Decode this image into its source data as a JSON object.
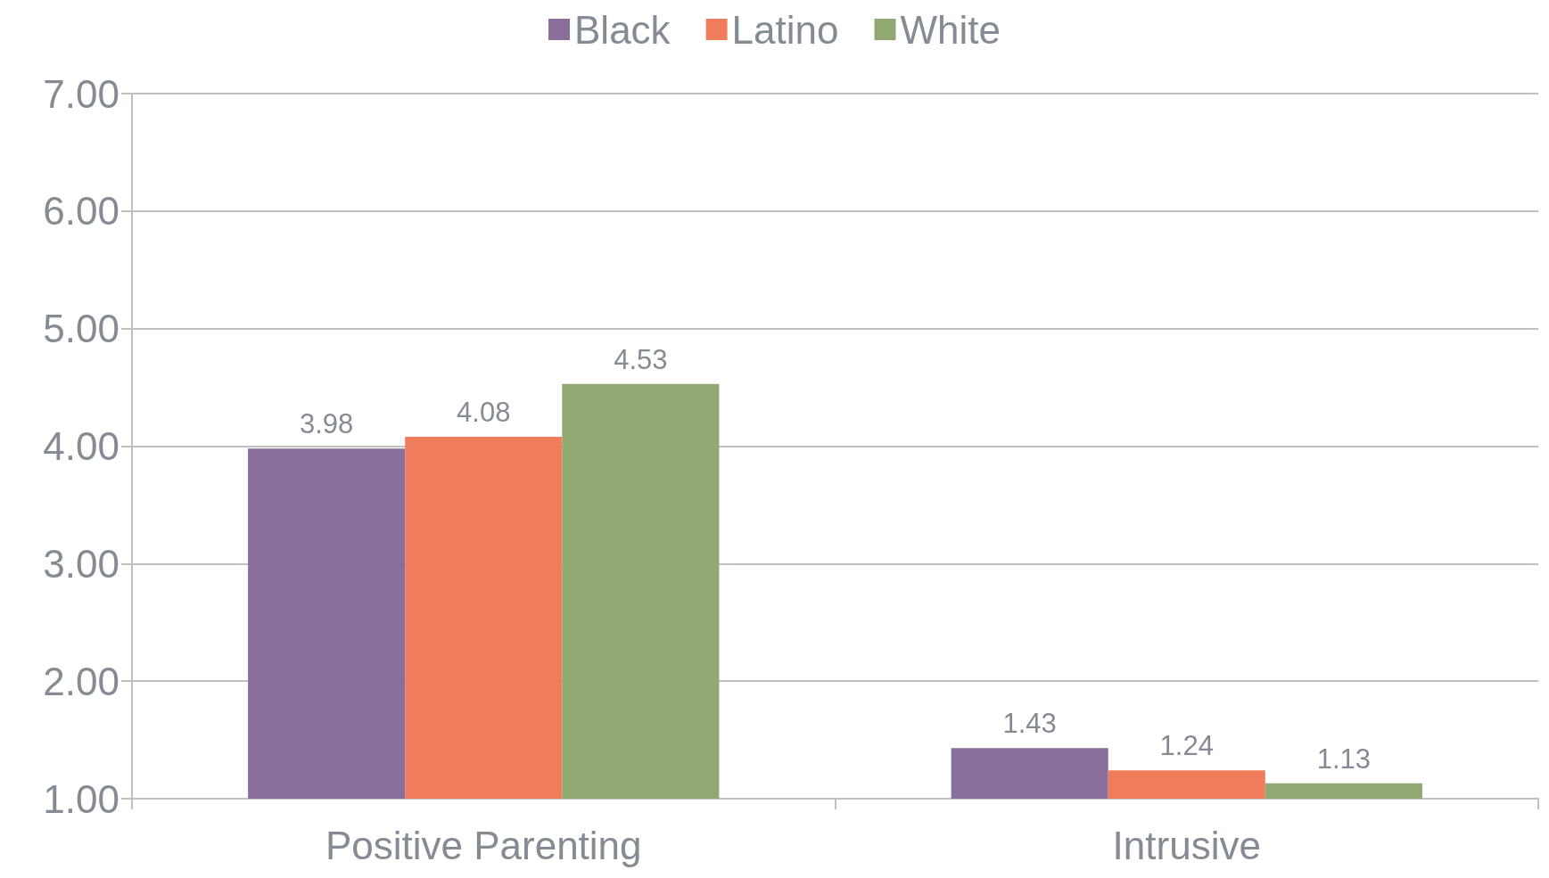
{
  "chart_data": {
    "type": "bar",
    "categories": [
      "Positive Parenting",
      "Intrusive"
    ],
    "series": [
      {
        "name": "Black",
        "color": "#8a6e9c",
        "values": [
          3.98,
          1.43
        ]
      },
      {
        "name": "Latino",
        "color": "#ef7d5c",
        "values": [
          4.08,
          1.24
        ]
      },
      {
        "name": "White",
        "color": "#91a872",
        "values": [
          4.53,
          1.13
        ]
      }
    ],
    "ylim": [
      1,
      7
    ],
    "yticks": [
      {
        "value": 1,
        "label": "1.00"
      },
      {
        "value": 2,
        "label": "2.00"
      },
      {
        "value": 3,
        "label": "3.00"
      },
      {
        "value": 4,
        "label": "4.00"
      },
      {
        "value": 5,
        "label": "5.00"
      },
      {
        "value": 6,
        "label": "6.00"
      },
      {
        "value": 7,
        "label": "7.00"
      }
    ],
    "data_labels": true,
    "grid": "y",
    "legend": "top"
  }
}
